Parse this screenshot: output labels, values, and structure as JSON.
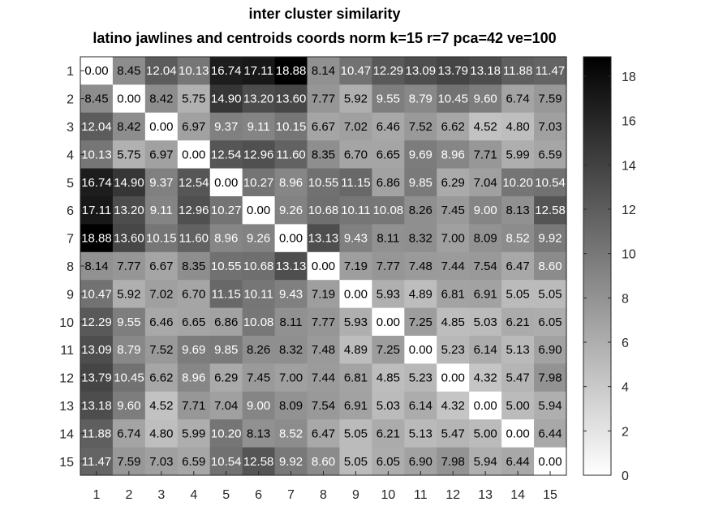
{
  "chart_data": {
    "type": "heatmap",
    "title": "inter cluster similarity",
    "subtitle": "latino jawlines and centroids coords norm k=15 r=7 pca=42 ve=100",
    "x_ticks": [
      "1",
      "2",
      "3",
      "4",
      "5",
      "6",
      "7",
      "8",
      "9",
      "10",
      "11",
      "12",
      "13",
      "14",
      "15"
    ],
    "y_ticks": [
      "1",
      "2",
      "3",
      "4",
      "5",
      "6",
      "7",
      "8",
      "9",
      "10",
      "11",
      "12",
      "13",
      "14",
      "15"
    ],
    "colormap": "gray reversed (0 = white, max = black)",
    "color_range": [
      0,
      18.88
    ],
    "colorbar_ticks": [
      0,
      2,
      4,
      6,
      8,
      10,
      12,
      14,
      16,
      18
    ],
    "matrix": [
      [
        0.0,
        8.45,
        12.04,
        10.13,
        16.74,
        17.11,
        18.88,
        8.14,
        10.47,
        12.29,
        13.09,
        13.79,
        13.18,
        11.88,
        11.47
      ],
      [
        8.45,
        0.0,
        8.42,
        5.75,
        14.9,
        13.2,
        13.6,
        7.77,
        5.92,
        9.55,
        8.79,
        10.45,
        9.6,
        6.74,
        7.59
      ],
      [
        12.04,
        8.42,
        0.0,
        6.97,
        9.37,
        9.11,
        10.15,
        6.67,
        7.02,
        6.46,
        7.52,
        6.62,
        4.52,
        4.8,
        7.03
      ],
      [
        10.13,
        5.75,
        6.97,
        0.0,
        12.54,
        12.96,
        11.6,
        8.35,
        6.7,
        6.65,
        9.69,
        8.96,
        7.71,
        5.99,
        6.59
      ],
      [
        16.74,
        14.9,
        9.37,
        12.54,
        0.0,
        10.27,
        8.96,
        10.55,
        11.15,
        6.86,
        9.85,
        6.29,
        7.04,
        10.2,
        10.54
      ],
      [
        17.11,
        13.2,
        9.11,
        12.96,
        10.27,
        0.0,
        9.26,
        10.68,
        10.11,
        10.08,
        8.26,
        7.45,
        9.0,
        8.13,
        12.58
      ],
      [
        18.88,
        13.6,
        10.15,
        11.6,
        8.96,
        9.26,
        0.0,
        13.13,
        9.43,
        8.11,
        8.32,
        7.0,
        8.09,
        8.52,
        9.92
      ],
      [
        8.14,
        7.77,
        6.67,
        8.35,
        10.55,
        10.68,
        13.13,
        0.0,
        7.19,
        7.77,
        7.48,
        7.44,
        7.54,
        6.47,
        8.6
      ],
      [
        10.47,
        5.92,
        7.02,
        6.7,
        11.15,
        10.11,
        9.43,
        7.19,
        0.0,
        5.93,
        4.89,
        6.81,
        6.91,
        5.05,
        5.05
      ],
      [
        12.29,
        9.55,
        6.46,
        6.65,
        6.86,
        10.08,
        8.11,
        7.77,
        5.93,
        0.0,
        7.25,
        4.85,
        5.03,
        6.21,
        6.05
      ],
      [
        13.09,
        8.79,
        7.52,
        9.69,
        9.85,
        8.26,
        8.32,
        7.48,
        4.89,
        7.25,
        0.0,
        5.23,
        6.14,
        5.13,
        6.9
      ],
      [
        13.79,
        10.45,
        6.62,
        8.96,
        6.29,
        7.45,
        7.0,
        7.44,
        6.81,
        4.85,
        5.23,
        0.0,
        4.32,
        5.47,
        7.98
      ],
      [
        13.18,
        9.6,
        4.52,
        7.71,
        7.04,
        9.0,
        8.09,
        7.54,
        6.91,
        5.03,
        6.14,
        4.32,
        0.0,
        5.0,
        5.94
      ],
      [
        11.88,
        6.74,
        4.8,
        5.99,
        10.2,
        8.13,
        8.52,
        6.47,
        5.05,
        6.21,
        5.13,
        5.47,
        5.0,
        0.0,
        6.44
      ],
      [
        11.47,
        7.59,
        7.03,
        6.59,
        10.54,
        12.58,
        9.92,
        8.6,
        5.05,
        6.05,
        6.9,
        7.98,
        5.94,
        6.44,
        0.0
      ]
    ]
  }
}
